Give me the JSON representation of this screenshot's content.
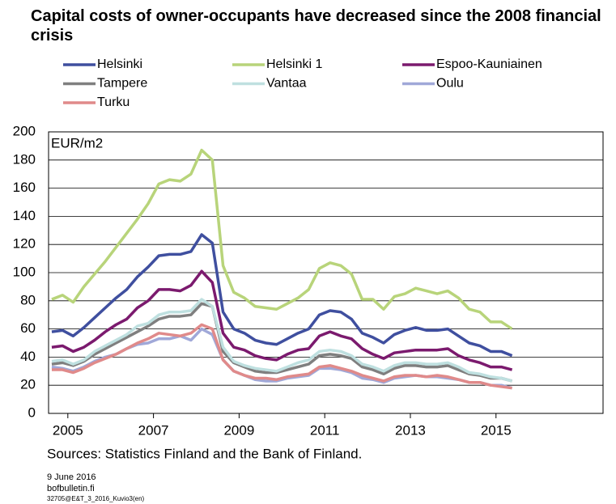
{
  "chart_data": {
    "type": "line",
    "title": "Capital costs of owner-occupants have decreased since the 2008 financial crisis",
    "y_unit": "EUR/m2",
    "source": "Sources: Statistics Finland and the Bank of Finland.",
    "date": "9 June 2016",
    "site": "bofbulletin.fi",
    "code": "32705@E&T_3_2016_Kuvio3(en)",
    "x": [
      2004.625,
      2004.875,
      2005.125,
      2005.375,
      2005.625,
      2005.875,
      2006.125,
      2006.375,
      2006.625,
      2006.875,
      2007.125,
      2007.375,
      2007.625,
      2007.875,
      2008.125,
      2008.375,
      2008.625,
      2008.875,
      2009.125,
      2009.375,
      2009.625,
      2009.875,
      2010.125,
      2010.375,
      2010.625,
      2010.875,
      2011.125,
      2011.375,
      2011.625,
      2011.875,
      2012.125,
      2012.375,
      2012.625,
      2012.875,
      2013.125,
      2013.375,
      2013.625,
      2013.875,
      2014.125,
      2014.375,
      2014.625,
      2014.875,
      2015.125,
      2015.375
    ],
    "series": [
      {
        "name": "Helsinki",
        "color": "#3f4f9f",
        "values": [
          58,
          59,
          55,
          61,
          68,
          75,
          82,
          88,
          97,
          104,
          112,
          113,
          113,
          115,
          127,
          121,
          72,
          60,
          57,
          52,
          50,
          49,
          53,
          57,
          60,
          70,
          73,
          72,
          67,
          57,
          54,
          50,
          56,
          59,
          61,
          59,
          59,
          60,
          55,
          50,
          48,
          44,
          44,
          41
        ]
      },
      {
        "name": "Helsinki 1",
        "color": "#b8d47a",
        "values": [
          81,
          84,
          79,
          90,
          99,
          108,
          118,
          128,
          138,
          149,
          163,
          166,
          165,
          170,
          187,
          180,
          105,
          86,
          82,
          76,
          75,
          74,
          78,
          82,
          88,
          103,
          107,
          105,
          99,
          81,
          81,
          74,
          83,
          85,
          89,
          87,
          85,
          87,
          82,
          74,
          72,
          65,
          65,
          60
        ]
      },
      {
        "name": "Espoo-Kauniainen",
        "color": "#7b1a6e",
        "values": [
          47,
          48,
          44,
          47,
          52,
          58,
          63,
          67,
          75,
          80,
          88,
          88,
          87,
          91,
          101,
          93,
          57,
          47,
          45,
          41,
          39,
          38,
          42,
          45,
          46,
          55,
          58,
          55,
          53,
          46,
          42,
          39,
          43,
          44,
          45,
          45,
          45,
          46,
          41,
          38,
          36,
          33,
          33,
          31
        ]
      },
      {
        "name": "Tampere",
        "color": "#7f7f7f",
        "values": [
          35,
          36,
          34,
          37,
          42,
          46,
          50,
          54,
          58,
          62,
          67,
          69,
          69,
          70,
          78,
          76,
          44,
          36,
          33,
          30,
          29,
          29,
          31,
          33,
          35,
          41,
          42,
          41,
          39,
          33,
          31,
          28,
          32,
          34,
          34,
          33,
          33,
          34,
          31,
          28,
          27,
          25,
          25,
          23
        ]
      },
      {
        "name": "Vantaa",
        "color": "#bfe0e0",
        "values": [
          37,
          38,
          35,
          38,
          44,
          48,
          52,
          56,
          62,
          64,
          70,
          72,
          72,
          73,
          81,
          76,
          47,
          37,
          34,
          32,
          31,
          30,
          33,
          36,
          38,
          44,
          45,
          44,
          41,
          35,
          33,
          30,
          34,
          36,
          36,
          35,
          35,
          36,
          33,
          29,
          28,
          26,
          25,
          23
        ]
      },
      {
        "name": "Oulu",
        "color": "#a0a8d8",
        "values": [
          33,
          32,
          30,
          33,
          37,
          40,
          42,
          46,
          49,
          50,
          53,
          53,
          55,
          52,
          60,
          56,
          38,
          30,
          27,
          24,
          23,
          23,
          25,
          26,
          27,
          32,
          32,
          31,
          29,
          25,
          24,
          22,
          25,
          26,
          27,
          26,
          26,
          25,
          24,
          22,
          22,
          20,
          20,
          18
        ]
      },
      {
        "name": "Turku",
        "color": "#e08a8a",
        "values": [
          31,
          31,
          29,
          32,
          36,
          39,
          42,
          46,
          50,
          53,
          57,
          56,
          55,
          57,
          63,
          60,
          38,
          30,
          27,
          25,
          25,
          24,
          26,
          27,
          28,
          33,
          34,
          32,
          30,
          27,
          25,
          23,
          26,
          27,
          27,
          26,
          27,
          26,
          24,
          22,
          22,
          20,
          19,
          18
        ]
      }
    ],
    "xlim": [
      2004.55,
      2017.5
    ],
    "xticks": [
      2005,
      2007,
      2009,
      2011,
      2013,
      2015
    ],
    "ylim": [
      0,
      200
    ],
    "yticks": [
      0,
      20,
      40,
      60,
      80,
      100,
      120,
      140,
      160,
      180,
      200
    ],
    "grid": true
  }
}
